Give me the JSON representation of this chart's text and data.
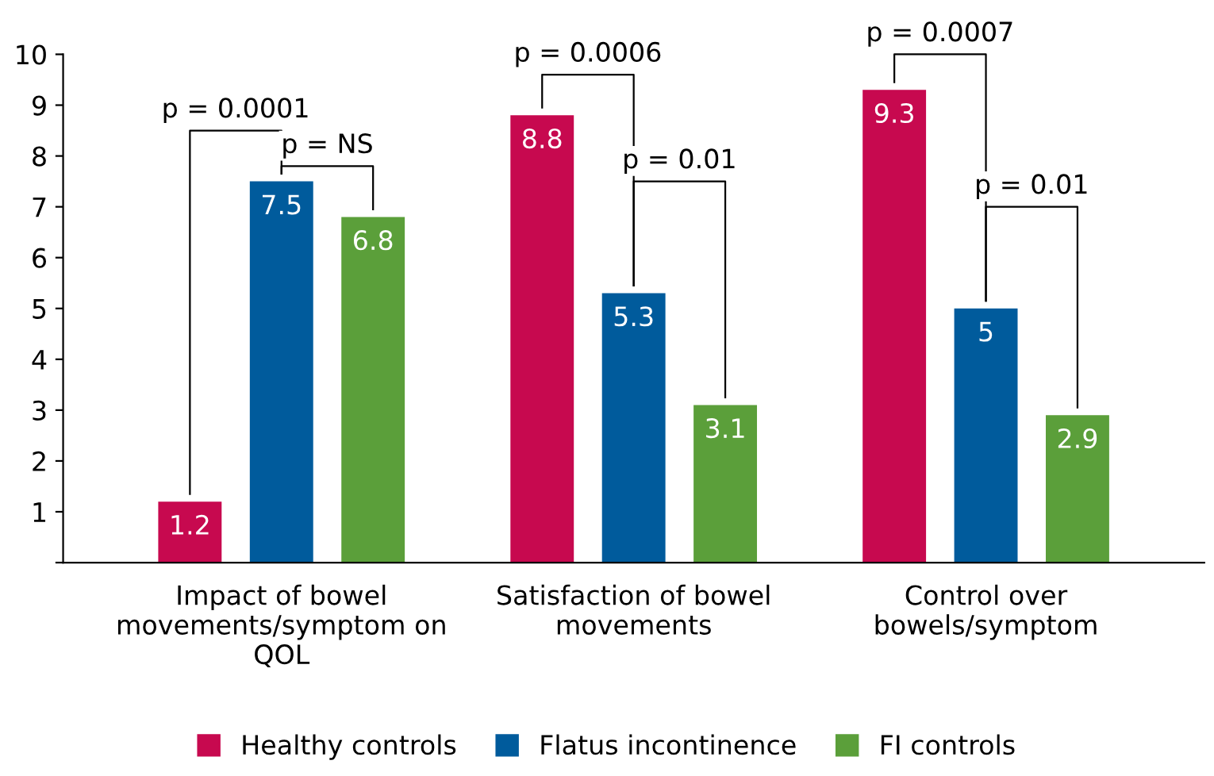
{
  "chart_data": {
    "type": "bar",
    "categories": [
      "Impact of bowel\nmovements/symptom on\nQOL",
      "Satisfaction of bowel\nmovements",
      "Control over\nbowels/symptom"
    ],
    "series": [
      {
        "name": "Healthy controls",
        "color": "#c7094f",
        "values": [
          1.2,
          8.8,
          9.3
        ]
      },
      {
        "name": "Flatus incontinence",
        "color": "#005b9c",
        "values": [
          7.5,
          5.3,
          5
        ]
      },
      {
        "name": "FI controls",
        "color": "#5b9f3a",
        "values": [
          6.8,
          3.1,
          2.9
        ]
      }
    ],
    "ylim": [
      0,
      10
    ],
    "yticks": [
      {
        "value": 0,
        "label": null
      },
      1,
      2,
      3,
      4,
      5,
      6,
      7,
      8,
      9,
      10
    ],
    "data_labels": true,
    "legend": "bottom",
    "grid": false,
    "annotations": [
      "p = 0.0001",
      "p = NS",
      "p = 0.0006",
      "p = 0.01",
      "p = 0.0007",
      "p = 0.01"
    ]
  }
}
